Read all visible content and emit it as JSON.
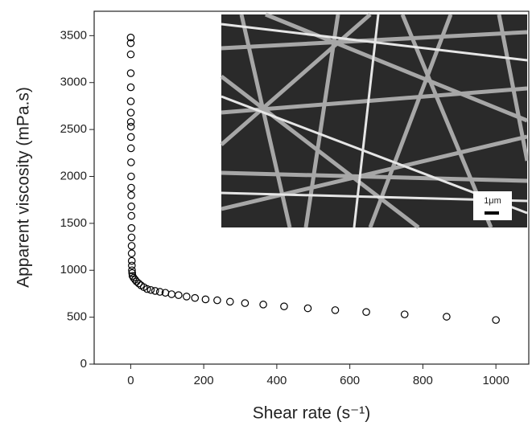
{
  "chart_data": {
    "type": "scatter",
    "x_label": "Shear rate (s⁻¹)",
    "y_label": "Apparent viscosity (mPa.s)",
    "inset_scale_label": "1μm",
    "x": [
      0.1,
      0.13,
      0.16,
      0.2,
      0.25,
      0.3,
      0.4,
      0.5,
      0.6,
      0.7,
      0.8,
      1,
      1.2,
      1.4,
      1.6,
      1.8,
      2,
      2.2,
      2.4,
      2.6,
      2.8,
      3,
      3.2,
      3.5,
      4,
      5,
      8,
      12,
      16,
      22,
      28,
      36,
      45,
      55,
      67,
      80,
      95,
      112,
      131,
      153,
      176,
      205,
      237,
      272,
      313,
      363,
      420,
      485,
      560,
      645,
      750,
      865,
      1000
    ],
    "values": [
      3480,
      3420,
      3300,
      3100,
      2950,
      2800,
      2680,
      2580,
      2530,
      2420,
      2300,
      2150,
      2000,
      1880,
      1800,
      1680,
      1580,
      1450,
      1350,
      1260,
      1180,
      1100,
      1050,
      1000,
      970,
      940,
      920,
      900,
      880,
      860,
      840,
      820,
      800,
      790,
      780,
      770,
      760,
      745,
      735,
      720,
      705,
      690,
      680,
      665,
      650,
      635,
      615,
      595,
      575,
      555,
      530,
      505,
      470
    ],
    "color": "#000000",
    "xlim": [
      -100,
      1090
    ],
    "ylim": [
      0,
      3760
    ],
    "xticks": [
      0,
      200,
      400,
      600,
      800,
      1000
    ],
    "yticks": [
      0,
      500,
      1000,
      1500,
      2000,
      2500,
      3000,
      3500
    ]
  }
}
